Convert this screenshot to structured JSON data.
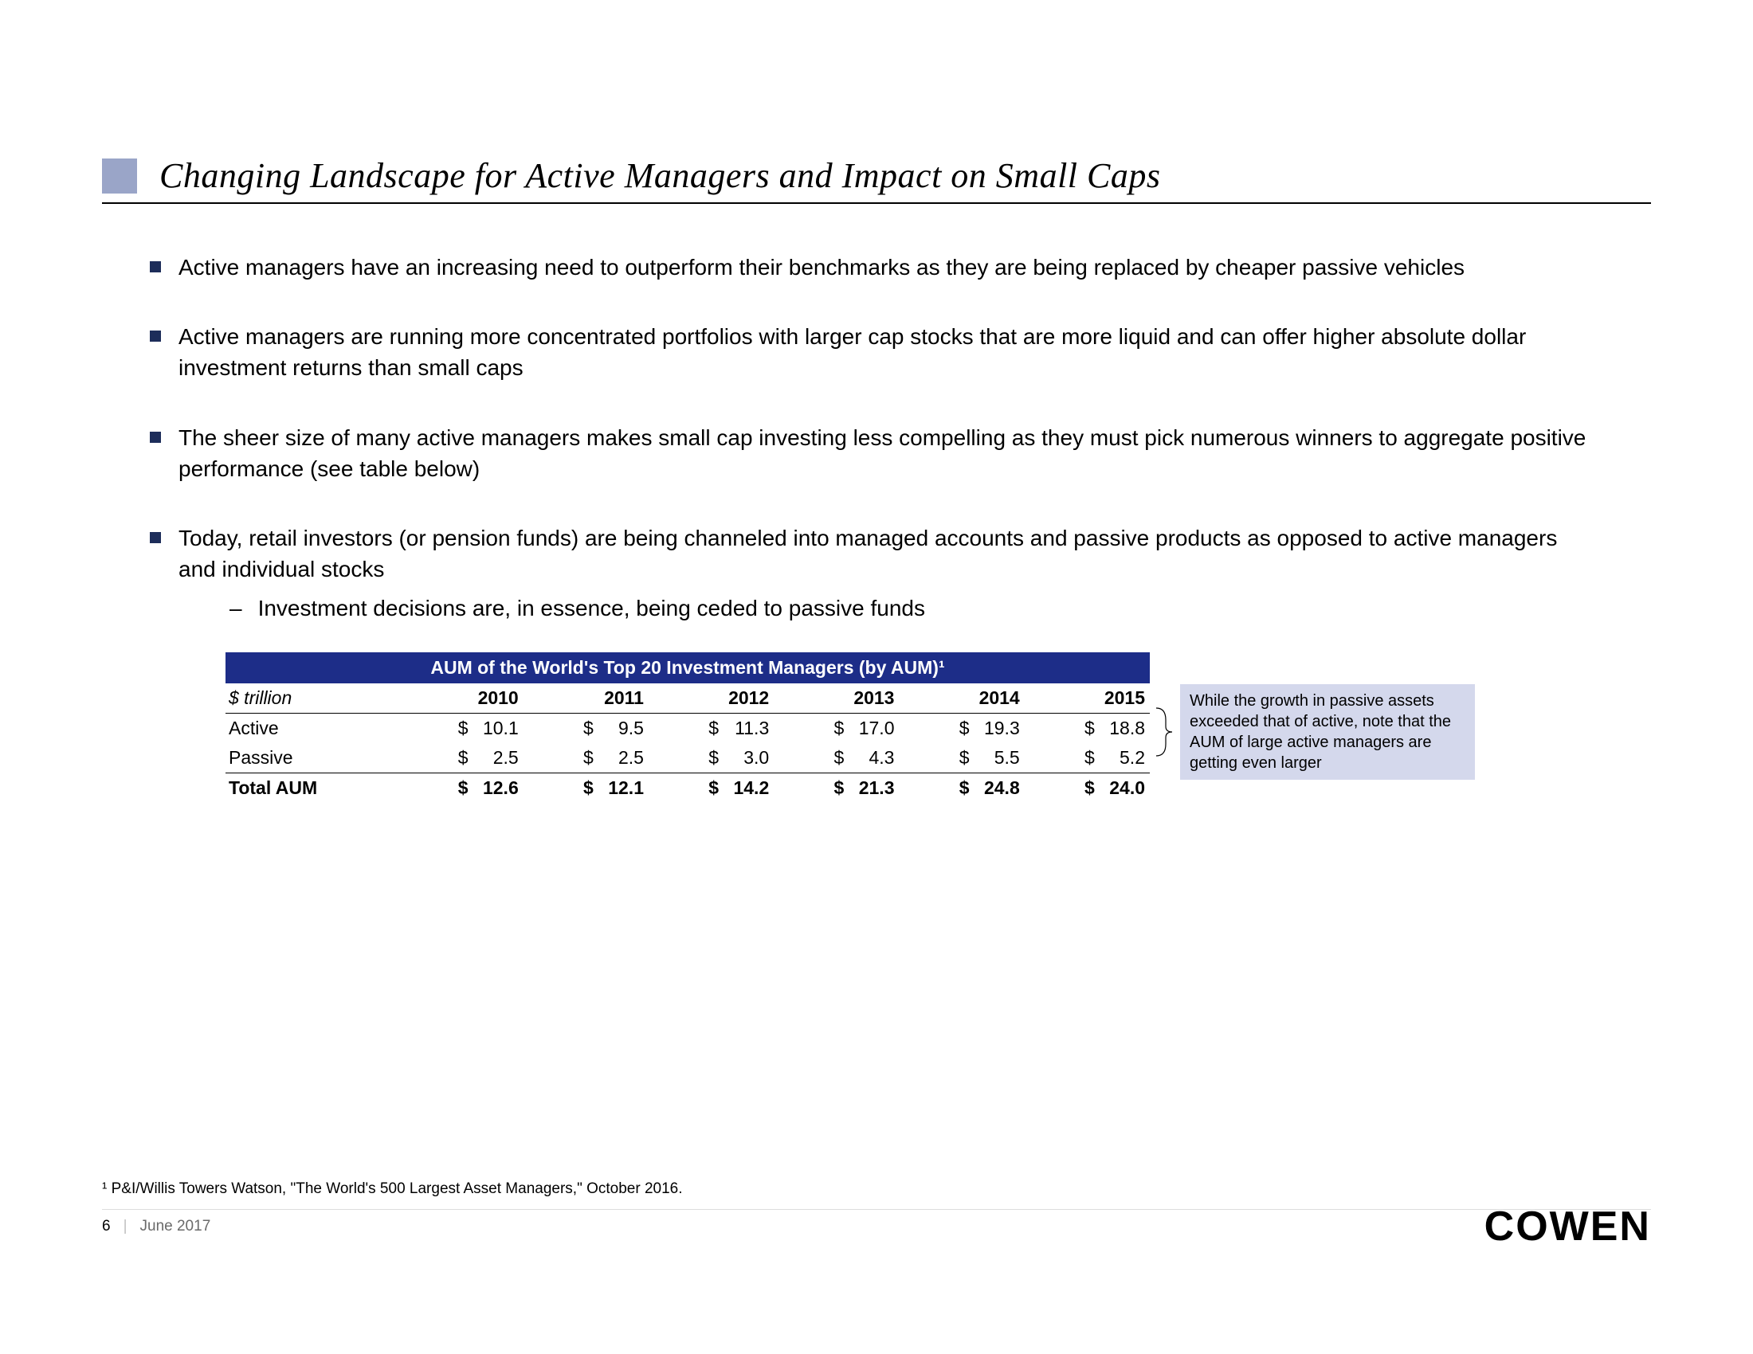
{
  "title": "Changing Landscape for Active Managers and Impact on Small Caps",
  "bullets": [
    {
      "text": "Active managers have an increasing need to outperform their benchmarks as they are being replaced by cheaper passive vehicles"
    },
    {
      "text": "Active managers are running more concentrated portfolios with larger cap stocks that are more liquid and can offer higher absolute dollar investment returns than small caps"
    },
    {
      "text": "The sheer size of many active managers makes small cap investing less compelling as they must pick numerous winners to aggregate positive performance (see table below)"
    },
    {
      "text": "Today, retail investors (or pension funds) are being channeled into managed accounts and passive products as opposed to active managers and individual stocks",
      "sub": "Investment decisions are, in essence, being ceded to passive funds"
    }
  ],
  "table": {
    "title": "AUM of the World's Top 20 Investment Managers (by AUM)¹",
    "unit_label": "$ trillion",
    "years": [
      "2010",
      "2011",
      "2012",
      "2013",
      "2014",
      "2015"
    ],
    "rows": [
      {
        "label": "Active",
        "values": [
          "10.1",
          "9.5",
          "11.3",
          "17.0",
          "19.3",
          "18.8"
        ]
      },
      {
        "label": "Passive",
        "values": [
          "2.5",
          "2.5",
          "3.0",
          "4.3",
          "5.5",
          "5.2"
        ]
      }
    ],
    "total": {
      "label": "Total AUM",
      "values": [
        "12.6",
        "12.1",
        "14.2",
        "21.3",
        "24.8",
        "24.0"
      ]
    },
    "header_bg": "#1d2d88",
    "header_fg": "#ffffff",
    "font_size": 23
  },
  "callout": "While the growth in passive assets exceeded that of active, note that the AUM of large active managers are getting even larger",
  "callout_bg": "#d4d8ec",
  "footnote": "¹ P&I/Willis Towers Watson, \"The World's 500 Largest Asset Managers,\" October 2016.",
  "footer": {
    "page": "6",
    "date": "June 2017"
  },
  "brand": "COWEN",
  "colors": {
    "title_square": "#9aa5c8",
    "bullet_marker": "#1d2d5a",
    "rule": "#dddddd"
  }
}
